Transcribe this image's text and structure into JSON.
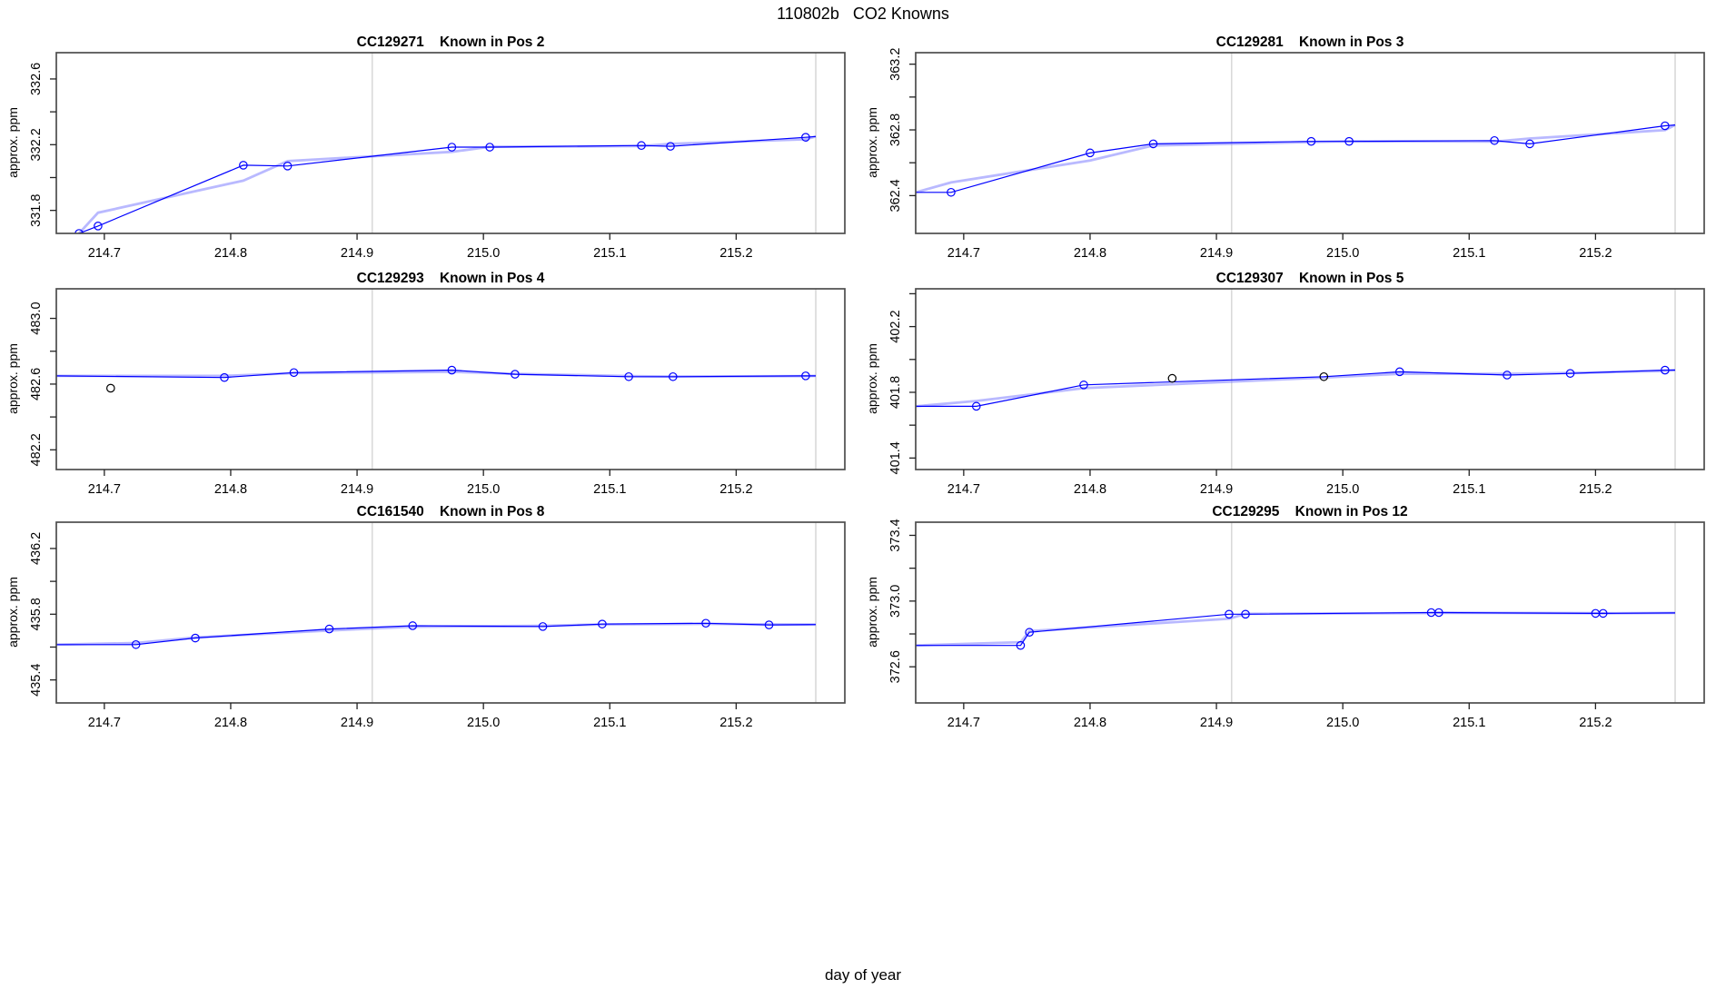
{
  "title": "110802b   CO2 Knowns",
  "xlabel": "day of year",
  "ylabel": "approx. ppm",
  "colors": {
    "line": "#0000ff",
    "smooth_halo": "#8080ff",
    "outlier": "#000000",
    "gridline": "#d9d9d9",
    "frame": "#4d4d4d",
    "tick": "#222222"
  },
  "x_axis": {
    "lim": [
      214.662,
      215.286
    ],
    "ticks": [
      214.7,
      214.8,
      214.9,
      215.0,
      215.1,
      215.2
    ],
    "tick_labels": [
      "214.7",
      "214.8",
      "214.9",
      "215.0",
      "215.1",
      "215.2"
    ],
    "gridlines": [
      214.912,
      215.263
    ]
  },
  "chart_data": [
    {
      "type": "line",
      "id": "CC129271",
      "position_label": "Known in Pos 2",
      "title": "CC129271    Known in Pos 2",
      "ylabel": "approx. ppm",
      "ylim": [
        331.66,
        332.76
      ],
      "yticks": [
        {
          "v": 331.8,
          "label": "331.8"
        },
        {
          "v": 332.0,
          "label": ""
        },
        {
          "v": 332.2,
          "label": "332.2"
        },
        {
          "v": 332.4,
          "label": ""
        },
        {
          "v": 332.6,
          "label": "332.6"
        }
      ],
      "points": [
        [
          214.68,
          331.66
        ],
        [
          214.695,
          331.705
        ],
        [
          214.81,
          332.075
        ],
        [
          214.845,
          332.07
        ],
        [
          214.975,
          332.185
        ],
        [
          215.005,
          332.185
        ],
        [
          215.125,
          332.195
        ],
        [
          215.148,
          332.19
        ],
        [
          215.255,
          332.245
        ]
      ],
      "black_points": [],
      "line": [
        [
          214.68,
          331.66
        ],
        [
          214.695,
          331.705
        ],
        [
          214.81,
          332.075
        ],
        [
          214.845,
          332.07
        ],
        [
          214.975,
          332.185
        ],
        [
          215.005,
          332.185
        ],
        [
          215.125,
          332.195
        ],
        [
          215.148,
          332.19
        ],
        [
          215.255,
          332.245
        ],
        [
          215.263,
          332.25
        ]
      ]
    },
    {
      "type": "line",
      "id": "CC129281",
      "position_label": "Known in Pos 3",
      "title": "CC129281    Known in Pos 3",
      "ylabel": "approx. ppm",
      "ylim": [
        362.17,
        363.27
      ],
      "yticks": [
        {
          "v": 362.4,
          "label": "362.4"
        },
        {
          "v": 362.6,
          "label": ""
        },
        {
          "v": 362.8,
          "label": "362.8"
        },
        {
          "v": 363.0,
          "label": ""
        },
        {
          "v": 363.2,
          "label": "363.2"
        }
      ],
      "points": [
        [
          214.69,
          362.42
        ],
        [
          214.8,
          362.66
        ],
        [
          214.85,
          362.715
        ],
        [
          214.975,
          362.73
        ],
        [
          215.005,
          362.73
        ],
        [
          215.12,
          362.735
        ],
        [
          215.148,
          362.715
        ],
        [
          215.255,
          362.825
        ]
      ],
      "black_points": [],
      "line": [
        [
          214.662,
          362.42
        ],
        [
          214.69,
          362.42
        ],
        [
          214.8,
          362.66
        ],
        [
          214.85,
          362.715
        ],
        [
          214.975,
          362.73
        ],
        [
          215.005,
          362.73
        ],
        [
          215.12,
          362.735
        ],
        [
          215.148,
          362.715
        ],
        [
          215.255,
          362.825
        ],
        [
          215.263,
          362.83
        ]
      ]
    },
    {
      "type": "line",
      "id": "CC129293",
      "position_label": "Known in Pos 4",
      "title": "CC129293    Known in Pos 4",
      "ylabel": "approx. ppm",
      "ylim": [
        482.08,
        483.18
      ],
      "yticks": [
        {
          "v": 482.2,
          "label": "482.2"
        },
        {
          "v": 482.4,
          "label": ""
        },
        {
          "v": 482.6,
          "label": "482.6"
        },
        {
          "v": 482.8,
          "label": ""
        },
        {
          "v": 483.0,
          "label": "483.0"
        }
      ],
      "points": [
        [
          214.795,
          482.64
        ],
        [
          214.85,
          482.67
        ],
        [
          214.975,
          482.685
        ],
        [
          215.025,
          482.66
        ],
        [
          215.115,
          482.645
        ],
        [
          215.15,
          482.645
        ],
        [
          215.255,
          482.65
        ]
      ],
      "black_points": [
        [
          214.705,
          482.575
        ]
      ],
      "line": [
        [
          214.662,
          482.65
        ],
        [
          214.795,
          482.64
        ],
        [
          214.85,
          482.67
        ],
        [
          214.975,
          482.685
        ],
        [
          215.025,
          482.66
        ],
        [
          215.115,
          482.645
        ],
        [
          215.15,
          482.645
        ],
        [
          215.255,
          482.65
        ],
        [
          215.263,
          482.65
        ]
      ]
    },
    {
      "type": "line",
      "id": "CC129307",
      "position_label": "Known in Pos 5",
      "title": "CC129307    Known in Pos 5",
      "ylabel": "approx. ppm",
      "ylim": [
        401.33,
        402.43
      ],
      "yticks": [
        {
          "v": 401.4,
          "label": "401.4"
        },
        {
          "v": 401.6,
          "label": ""
        },
        {
          "v": 401.8,
          "label": "401.8"
        },
        {
          "v": 402.0,
          "label": ""
        },
        {
          "v": 402.2,
          "label": "402.2"
        },
        {
          "v": 402.4,
          "label": ""
        }
      ],
      "points": [
        [
          214.71,
          401.715
        ],
        [
          214.795,
          401.845
        ],
        [
          215.045,
          401.925
        ],
        [
          215.13,
          401.905
        ],
        [
          215.18,
          401.915
        ],
        [
          215.255,
          401.935
        ]
      ],
      "black_points": [
        [
          214.865,
          401.885
        ],
        [
          214.985,
          401.895
        ]
      ],
      "line": [
        [
          214.662,
          401.715
        ],
        [
          214.71,
          401.715
        ],
        [
          214.795,
          401.845
        ],
        [
          214.985,
          401.895
        ],
        [
          215.045,
          401.925
        ],
        [
          215.13,
          401.905
        ],
        [
          215.18,
          401.915
        ],
        [
          215.255,
          401.935
        ],
        [
          215.263,
          401.935
        ]
      ]
    },
    {
      "type": "line",
      "id": "CC161540",
      "position_label": "Known in Pos 8",
      "title": "CC161540    Known in Pos 8",
      "ylabel": "approx. ppm",
      "ylim": [
        435.26,
        436.36
      ],
      "yticks": [
        {
          "v": 435.4,
          "label": "435.4"
        },
        {
          "v": 435.6,
          "label": ""
        },
        {
          "v": 435.8,
          "label": "435.8"
        },
        {
          "v": 436.0,
          "label": ""
        },
        {
          "v": 436.2,
          "label": "436.2"
        }
      ],
      "points": [
        [
          214.725,
          435.615
        ],
        [
          214.772,
          435.655
        ],
        [
          214.878,
          435.71
        ],
        [
          214.944,
          435.73
        ],
        [
          215.047,
          435.725
        ],
        [
          215.094,
          435.74
        ],
        [
          215.176,
          435.745
        ],
        [
          215.226,
          435.735
        ]
      ],
      "black_points": [],
      "line": [
        [
          214.662,
          435.615
        ],
        [
          214.725,
          435.615
        ],
        [
          214.772,
          435.655
        ],
        [
          214.878,
          435.71
        ],
        [
          214.944,
          435.73
        ],
        [
          215.047,
          435.725
        ],
        [
          215.094,
          435.74
        ],
        [
          215.176,
          435.745
        ],
        [
          215.226,
          435.735
        ],
        [
          215.263,
          435.737
        ]
      ]
    },
    {
      "type": "line",
      "id": "CC129295",
      "position_label": "Known in Pos 12",
      "title": "CC129295    Known in Pos 12",
      "ylabel": "approx. ppm",
      "ylim": [
        372.38,
        373.48
      ],
      "yticks": [
        {
          "v": 372.6,
          "label": "372.6"
        },
        {
          "v": 372.8,
          "label": ""
        },
        {
          "v": 373.0,
          "label": "373.0"
        },
        {
          "v": 373.2,
          "label": ""
        },
        {
          "v": 373.4,
          "label": "373.4"
        }
      ],
      "points": [
        [
          214.745,
          372.73
        ],
        [
          214.752,
          372.81
        ],
        [
          214.91,
          372.92
        ],
        [
          214.923,
          372.92
        ],
        [
          215.07,
          372.93
        ],
        [
          215.076,
          372.93
        ],
        [
          215.2,
          372.925
        ],
        [
          215.206,
          372.925
        ]
      ],
      "black_points": [],
      "line": [
        [
          214.662,
          372.73
        ],
        [
          214.745,
          372.73
        ],
        [
          214.752,
          372.81
        ],
        [
          214.91,
          372.92
        ],
        [
          214.923,
          372.92
        ],
        [
          215.07,
          372.93
        ],
        [
          215.076,
          372.93
        ],
        [
          215.2,
          372.925
        ],
        [
          215.206,
          372.925
        ],
        [
          215.263,
          372.928
        ]
      ]
    }
  ]
}
